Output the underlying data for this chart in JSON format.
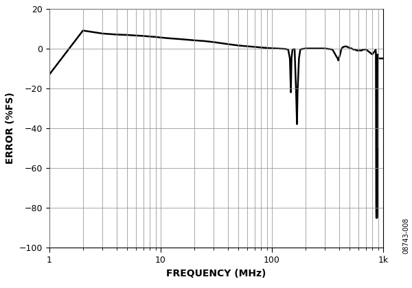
{
  "title": "",
  "xlabel": "FREQUENCY (MHz)",
  "ylabel": "ERROR (%FS)",
  "watermark": "08743-008",
  "xlim": [
    1,
    1000
  ],
  "ylim": [
    -100,
    20
  ],
  "yticks": [
    -100,
    -80,
    -60,
    -40,
    -20,
    0,
    20
  ],
  "key_freqs": [
    1,
    2,
    3,
    4,
    5,
    6,
    7,
    8,
    9,
    10,
    12,
    15,
    20,
    25,
    30,
    40,
    50,
    60,
    70,
    80,
    90,
    100,
    110,
    120,
    130,
    140,
    145,
    148,
    150,
    153,
    160,
    165,
    168,
    170,
    175,
    180,
    185,
    190,
    195,
    200,
    210,
    220,
    230,
    250,
    300,
    350,
    380,
    390,
    395,
    400,
    405,
    410,
    420,
    430,
    450,
    470,
    490,
    500,
    520,
    540,
    560,
    580,
    600,
    620,
    640,
    660,
    680,
    700,
    720,
    740,
    760,
    780,
    800,
    820,
    840,
    850,
    855,
    860,
    862,
    864,
    866,
    868,
    870,
    872,
    874,
    876,
    878,
    880,
    882,
    884,
    886,
    888,
    890,
    892,
    895,
    900,
    910,
    920,
    950,
    1000
  ],
  "key_errors": [
    -13,
    9,
    7.5,
    7.0,
    6.8,
    6.5,
    6.3,
    6.0,
    5.8,
    5.5,
    5.1,
    4.7,
    4.1,
    3.7,
    3.2,
    2.2,
    1.5,
    1.1,
    0.8,
    0.5,
    0.3,
    0.1,
    0.0,
    -0.1,
    -0.2,
    -0.5,
    -5,
    -22,
    -5,
    -0.5,
    -0.3,
    -22,
    -38,
    -22,
    -5,
    -0.5,
    -0.3,
    -0.2,
    -0.1,
    0.0,
    0.0,
    0.0,
    0.0,
    0.0,
    0.0,
    -0.5,
    -4,
    -5,
    -6,
    -5,
    -4,
    -3,
    -0.5,
    0.5,
    1.0,
    1.0,
    0.5,
    0.2,
    0.0,
    -0.5,
    -0.5,
    -1.0,
    -1.0,
    -1.0,
    -1.0,
    -0.5,
    -0.5,
    -0.5,
    -1.0,
    -1.5,
    -2.0,
    -2.5,
    -3.0,
    -2.0,
    -1.5,
    -1.0,
    -0.5,
    -2.0,
    -20,
    -50,
    -80,
    -85,
    -85,
    -85,
    -85,
    -80,
    -50,
    -85,
    -85,
    -80,
    -20,
    -5,
    -5,
    -3,
    -5,
    -5,
    -5,
    -5,
    -5,
    -5
  ],
  "line_color": "#000000",
  "line_width": 1.8,
  "grid_color": "#999999",
  "background_color": "#ffffff"
}
